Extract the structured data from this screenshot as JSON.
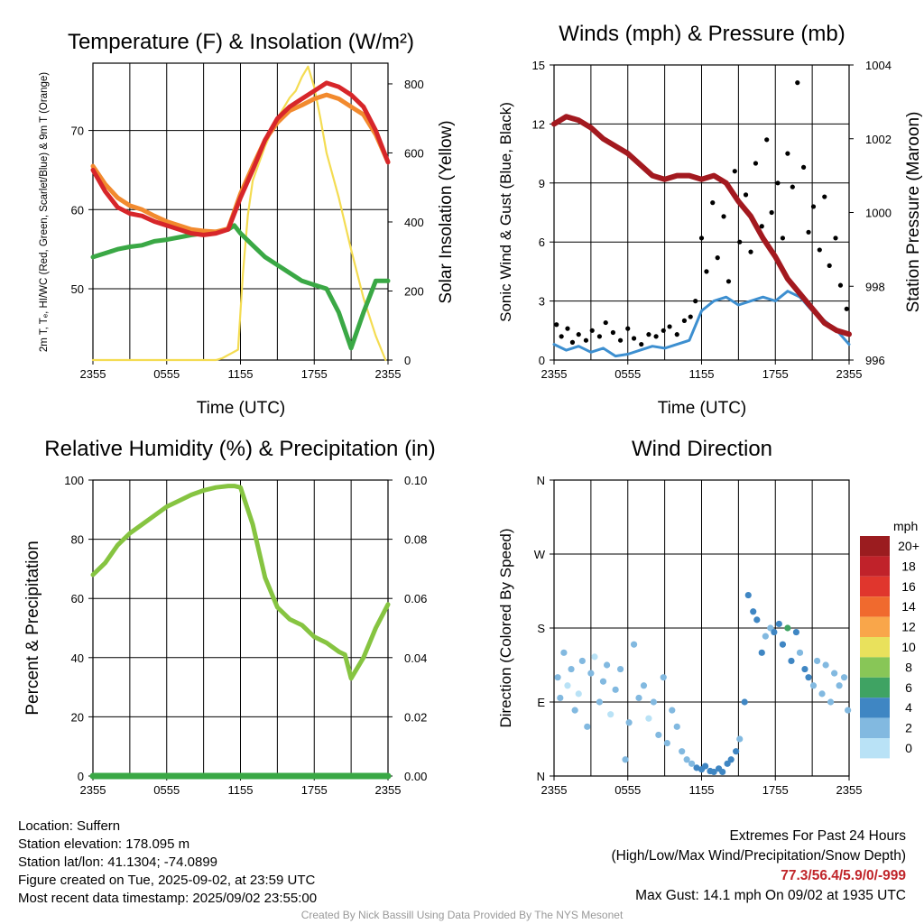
{
  "panels": {
    "temp": {
      "title": "Temperature (F) & Insolation (W/m²)",
      "ylabel": "2m T, Tₑ, HI/WC (Red, Green, Scarlet/Blue) & 9m T (Orange)",
      "y2label": "Solar Insolation (Yellow)",
      "xlabel": "Time (UTC)"
    },
    "wind": {
      "title": "Winds (mph) & Pressure (mb)",
      "ylabel": "Sonic Wind & Gust (Blue, Black)",
      "y2label": "Station Pressure (Maroon)",
      "xlabel": "Time (UTC)"
    },
    "rh": {
      "title": "Relative Humidity (%) & Precipitation (in)",
      "ylabel": "Percent & Precipitation"
    },
    "dir": {
      "title": "Wind Direction",
      "ylabel": "Direction (Colored By Speed)"
    }
  },
  "colorbar": {
    "unit": "mph",
    "labels": [
      "20+",
      "18",
      "16",
      "14",
      "12",
      "10",
      "8",
      "6",
      "4",
      "2",
      "0"
    ],
    "colors": [
      "#9b1c1f",
      "#c0222a",
      "#e0362d",
      "#f06a2e",
      "#f9a64a",
      "#e9e15c",
      "#88c657",
      "#3fa363",
      "#3f86c3",
      "#82b9e0",
      "#b9e2f6"
    ]
  },
  "footer": {
    "location": "Location: Suffern",
    "elevation": "Station elevation: 178.095 m",
    "latlon": "Station lat/lon: 41.1304; -74.0899",
    "created": "Figure created on Tue, 2025-09-02, at 23:59 UTC",
    "recent": "Most recent data timestamp: 2025/09/02 23:55:00",
    "extremes_title": "Extremes For Past 24 Hours",
    "extremes_sub": "(High/Low/Max Wind/Precipitation/Snow Depth)",
    "extremes_values": "77.3/56.4/5.9/0/-999",
    "max_gust": "Max Gust: 14.1 mph On 09/02 at 1935 UTC",
    "credit": "Created By Nick Bassill Using Data Provided By The NYS Mesonet"
  },
  "chart_data": [
    {
      "type": "line",
      "title": "Temperature (F) & Insolation (W/m²)",
      "xlabel": "Time (UTC)",
      "ylabel": "2m T, Tₑ, HI/WC (Red, Green, Scarlet/Blue) & 9m T (Orange)",
      "y2label": "Solar Insolation (Yellow)",
      "xticks": [
        "2355",
        "0555",
        "1155",
        "1755",
        "2355"
      ],
      "xlim": [
        0,
        24
      ],
      "ylim": [
        41,
        78.5
      ],
      "yticks": [
        50,
        60,
        70
      ],
      "y2lim": [
        0,
        860
      ],
      "y2ticks": [
        0,
        200,
        400,
        600,
        800
      ],
      "series": [
        {
          "color": "#d7262a",
          "axis": "left",
          "x": [
            0,
            1,
            2,
            3,
            4,
            5,
            6,
            7,
            8,
            9,
            10,
            11,
            11.5,
            12,
            13,
            14,
            15,
            16,
            17,
            18,
            19,
            20,
            21,
            22,
            23,
            24
          ],
          "y": [
            65,
            62.3,
            60.3,
            59.5,
            59.2,
            58.5,
            58,
            57.5,
            57,
            56.8,
            57,
            57.5,
            59.5,
            61.5,
            65,
            68.8,
            71.5,
            73,
            74,
            75,
            76,
            75.5,
            74.5,
            73,
            70,
            66
          ]
        },
        {
          "color": "#f28a2e",
          "axis": "left",
          "x": [
            0,
            1,
            2,
            3,
            4,
            5,
            6,
            7,
            8,
            9,
            10,
            11,
            11.5,
            12,
            13,
            14,
            15,
            16,
            17,
            18,
            19,
            20,
            21,
            22,
            23,
            24
          ],
          "y": [
            65.5,
            63.2,
            61.5,
            60.5,
            60,
            59.2,
            58.5,
            58,
            57.5,
            57.3,
            57.2,
            57.6,
            59.8,
            62,
            65.5,
            68.8,
            71,
            72.5,
            73.2,
            74,
            74.5,
            74,
            73,
            72,
            69.5,
            66
          ]
        },
        {
          "color": "#3aa845",
          "axis": "left",
          "x": [
            0,
            1,
            2,
            3,
            4,
            5,
            6,
            7,
            8,
            9,
            10,
            11,
            11.5,
            12,
            13,
            14,
            15,
            16,
            17,
            18,
            19,
            20,
            21,
            22,
            23,
            24
          ],
          "y": [
            54,
            54.5,
            55,
            55.3,
            55.5,
            56,
            56.2,
            56.5,
            56.8,
            57,
            57.2,
            57.5,
            58,
            57,
            55.5,
            54,
            53,
            52,
            51,
            50.5,
            50,
            47,
            42.5,
            47,
            51,
            51
          ]
        },
        {
          "color": "#f4dc52",
          "axis": "right",
          "x": [
            0,
            2,
            4,
            6,
            8,
            10,
            10.5,
            11.8,
            12.2,
            12.6,
            13,
            14,
            15,
            16,
            16.5,
            17,
            17.5,
            18,
            18.5,
            19,
            20,
            21,
            22,
            23,
            23.8
          ],
          "y": [
            0,
            0,
            0,
            0,
            0,
            0,
            5,
            30,
            250,
            420,
            520,
            620,
            700,
            760,
            780,
            820,
            850,
            790,
            700,
            600,
            470,
            320,
            180,
            70,
            0
          ]
        }
      ]
    },
    {
      "type": "line",
      "title": "Winds (mph) & Pressure (mb)",
      "xlabel": "Time (UTC)",
      "ylabel": "Sonic Wind & Gust (Blue, Black)",
      "y2label": "Station Pressure (Maroon)",
      "xticks": [
        "2355",
        "0555",
        "1155",
        "1755",
        "2355"
      ],
      "xlim": [
        0,
        24
      ],
      "ylim": [
        0,
        15
      ],
      "yticks": [
        0,
        3,
        6,
        9,
        12,
        15
      ],
      "y2lim": [
        996,
        1004
      ],
      "y2ticks": [
        996,
        998,
        1000,
        1002,
        1004
      ],
      "series": [
        {
          "name": "wind",
          "color": "#3d8fd0",
          "axis": "left",
          "x": [
            0,
            1,
            2,
            3,
            4,
            5,
            6,
            7,
            8,
            9,
            10,
            11,
            12,
            13,
            14,
            15,
            16,
            17,
            18,
            19,
            20,
            21,
            22,
            23,
            24
          ],
          "y": [
            0.8,
            0.5,
            0.7,
            0.4,
            0.6,
            0.2,
            0.3,
            0.5,
            0.7,
            0.6,
            0.8,
            1.0,
            2.5,
            3.0,
            3.2,
            2.8,
            3.0,
            3.2,
            3.0,
            3.5,
            3.2,
            2.5,
            2.0,
            1.5,
            0.8
          ]
        },
        {
          "name": "pressure",
          "color": "#a3191f",
          "axis": "right",
          "x": [
            0,
            1,
            2,
            3,
            4,
            5,
            6,
            7,
            8,
            9,
            10,
            11,
            12,
            13,
            14,
            15,
            16,
            17,
            18,
            19,
            20,
            21,
            22,
            23,
            24
          ],
          "y": [
            1002.4,
            1002.6,
            1002.5,
            1002.3,
            1002.0,
            1001.8,
            1001.6,
            1001.3,
            1001.0,
            1000.9,
            1001.0,
            1001.0,
            1000.9,
            1001.0,
            1000.8,
            1000.3,
            999.9,
            999.3,
            998.8,
            998.2,
            997.8,
            997.4,
            997.0,
            996.8,
            996.7
          ]
        },
        {
          "name": "gust",
          "color": "#000000",
          "axis": "left",
          "style": "points",
          "x": [
            0.2,
            0.6,
            1.1,
            1.5,
            2.0,
            2.6,
            3.1,
            3.7,
            4.2,
            4.8,
            5.4,
            6.0,
            6.5,
            7.1,
            7.7,
            8.3,
            8.9,
            9.4,
            10.0,
            10.6,
            11.1,
            11.5,
            12.0,
            12.4,
            12.9,
            13.3,
            13.8,
            14.2,
            14.7,
            15.1,
            15.6,
            16.0,
            16.4,
            16.9,
            17.3,
            17.7,
            18.2,
            18.6,
            19.0,
            19.4,
            19.8,
            20.3,
            20.7,
            21.1,
            21.6,
            22.0,
            22.4,
            22.9,
            23.3,
            23.8
          ],
          "y": [
            1.8,
            1.2,
            1.6,
            0.9,
            1.3,
            1.0,
            1.5,
            1.2,
            1.9,
            1.4,
            1.0,
            1.6,
            1.1,
            0.8,
            1.3,
            1.2,
            1.5,
            1.7,
            1.3,
            2.0,
            2.2,
            3.0,
            6.2,
            4.5,
            8.0,
            5.2,
            7.3,
            4.0,
            9.6,
            6.0,
            8.4,
            5.5,
            10.0,
            6.8,
            11.2,
            7.5,
            9.0,
            6.2,
            10.5,
            8.8,
            14.1,
            9.8,
            6.5,
            7.8,
            5.6,
            8.3,
            4.8,
            6.2,
            3.8,
            2.6
          ]
        }
      ]
    },
    {
      "type": "line",
      "title": "Relative Humidity (%) & Precipitation (in)",
      "ylabel": "Percent & Precipitation",
      "xticks": [
        "2355",
        "0555",
        "1155",
        "1755",
        "2355"
      ],
      "xlim": [
        0,
        24
      ],
      "ylim": [
        0,
        100
      ],
      "yticks": [
        0,
        20,
        40,
        60,
        80,
        100
      ],
      "y2lim": [
        0,
        0.1
      ],
      "y2ticks": [
        "0.00",
        "0.02",
        "0.04",
        "0.06",
        "0.08",
        "0.10"
      ],
      "series": [
        {
          "color": "#86c441",
          "axis": "left",
          "x": [
            0,
            1,
            2,
            3,
            4,
            5,
            6,
            7,
            8,
            9,
            10,
            11,
            11.5,
            12,
            13,
            14,
            15,
            16,
            17,
            18,
            19,
            20,
            20.5,
            21,
            22,
            23,
            24
          ],
          "y": [
            68,
            72,
            78,
            82,
            85,
            88,
            91,
            93,
            95,
            96.5,
            97.5,
            98,
            98,
            97.5,
            85,
            67,
            57,
            53,
            51,
            47,
            45,
            42,
            41,
            33,
            40,
            50,
            58
          ]
        },
        {
          "color": "#3aa845",
          "axis": "right",
          "x": [
            0,
            24
          ],
          "y": [
            0,
            0
          ]
        }
      ]
    },
    {
      "type": "scatter",
      "title": "Wind Direction",
      "ylabel": "Direction (Colored By Speed)",
      "xticks": [
        "2355",
        "0555",
        "1155",
        "1755",
        "2355"
      ],
      "xlim": [
        0,
        24
      ],
      "yticks": [
        "N",
        "E",
        "S",
        "W",
        "N"
      ],
      "ylim": [
        0,
        360
      ],
      "x": [
        0.3,
        0.5,
        0.8,
        1.1,
        1.4,
        1.7,
        2.0,
        2.3,
        2.7,
        3.0,
        3.3,
        3.7,
        4.0,
        4.3,
        4.6,
        5.0,
        5.4,
        5.8,
        6.1,
        6.5,
        6.9,
        7.3,
        7.7,
        8.1,
        8.5,
        8.9,
        9.2,
        9.6,
        10.0,
        10.4,
        10.8,
        11.2,
        11.6,
        12.0,
        12.3,
        12.7,
        13.0,
        13.4,
        13.7,
        14.1,
        14.4,
        14.8,
        15.1,
        15.5,
        15.8,
        16.2,
        16.5,
        16.9,
        17.2,
        17.6,
        17.9,
        18.3,
        18.6,
        19.0,
        19.3,
        19.7,
        20.0,
        20.4,
        20.7,
        21.1,
        21.4,
        21.8,
        22.1,
        22.5,
        22.8,
        23.2,
        23.6,
        23.9
      ],
      "y": [
        120,
        95,
        150,
        110,
        130,
        80,
        100,
        140,
        60,
        125,
        145,
        90,
        115,
        135,
        75,
        105,
        130,
        20,
        65,
        160,
        95,
        110,
        70,
        90,
        50,
        120,
        40,
        80,
        60,
        30,
        20,
        15,
        10,
        8,
        12,
        6,
        5,
        9,
        5,
        15,
        20,
        30,
        45,
        90,
        220,
        200,
        190,
        150,
        170,
        180,
        175,
        185,
        160,
        180,
        140,
        175,
        150,
        130,
        120,
        110,
        140,
        100,
        135,
        90,
        125,
        110,
        120,
        80
      ],
      "speed": [
        1,
        1,
        1,
        0.5,
        1,
        1,
        0.5,
        1,
        1,
        1,
        0.5,
        1,
        1,
        1,
        0.5,
        1,
        1,
        1,
        1,
        1,
        1,
        1,
        0.5,
        1,
        1,
        1,
        1,
        1,
        1,
        2,
        2,
        2,
        3,
        3,
        3,
        4,
        4,
        4,
        4,
        3,
        3,
        3,
        2,
        3,
        3,
        4,
        4,
        3,
        2,
        2,
        3,
        4,
        4,
        5,
        4,
        3,
        2,
        3,
        3,
        2,
        2,
        2,
        2,
        1,
        2,
        1,
        2,
        1
      ]
    }
  ]
}
